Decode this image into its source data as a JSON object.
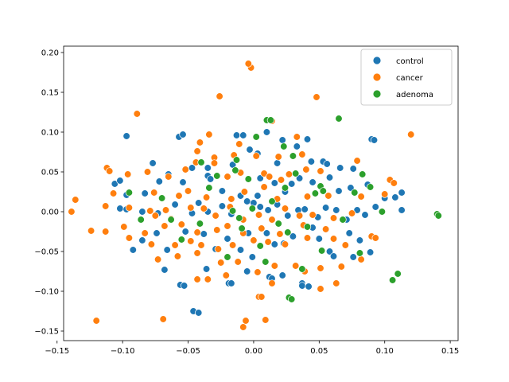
{
  "chart_data": {
    "type": "scatter",
    "title": "",
    "xlabel": "",
    "ylabel": "",
    "xlim": [
      -0.145,
      0.156
    ],
    "ylim": [
      -0.162,
      0.208
    ],
    "xticks": [
      -0.15,
      -0.1,
      -0.05,
      0.0,
      0.05,
      0.1,
      0.15
    ],
    "xtick_labels": [
      "−0.15",
      "−0.10",
      "−0.05",
      "0.00",
      "0.05",
      "0.10",
      "0.15"
    ],
    "yticks": [
      -0.15,
      -0.1,
      -0.05,
      0.0,
      0.05,
      0.1,
      0.15,
      0.2
    ],
    "ytick_labels": [
      "−0.15",
      "−0.10",
      "−0.05",
      "0.00",
      "0.05",
      "0.10",
      "0.15",
      "0.20"
    ],
    "grid": false,
    "legend": {
      "placement": "top-right"
    },
    "series": [
      {
        "name": "control",
        "color": "#1f77b4",
        "points": [
          [
            -0.097,
            0.095
          ],
          [
            -0.057,
            0.094
          ],
          [
            -0.054,
            0.097
          ],
          [
            -0.013,
            0.096
          ],
          [
            -0.008,
            0.096
          ],
          [
            0.01,
            0.1
          ],
          [
            0.022,
            0.09
          ],
          [
            -0.077,
            0.061
          ],
          [
            -0.065,
            0.047
          ],
          [
            -0.047,
            0.055
          ],
          [
            -0.035,
            0.055
          ],
          [
            -0.016,
            0.059
          ],
          [
            -0.003,
            0.078
          ],
          [
            0.003,
            0.073
          ],
          [
            0.018,
            0.061
          ],
          [
            0.033,
            0.082
          ],
          [
            0.041,
            0.091
          ],
          [
            0.044,
            0.063
          ],
          [
            0.053,
            0.063
          ],
          [
            0.056,
            0.06
          ],
          [
            0.066,
            0.055
          ],
          [
            0.076,
            0.054
          ],
          [
            0.09,
            0.091
          ],
          [
            0.092,
            0.09
          ],
          [
            -0.106,
            0.035
          ],
          [
            -0.102,
            0.039
          ],
          [
            -0.097,
            0.021
          ],
          [
            -0.083,
            0.023
          ],
          [
            -0.072,
            0.038
          ],
          [
            -0.054,
            0.037
          ],
          [
            -0.035,
            0.045
          ],
          [
            -0.033,
            0.041
          ],
          [
            -0.024,
            0.026
          ],
          [
            -0.01,
            0.02
          ],
          [
            0.003,
            0.02
          ],
          [
            0.005,
            0.042
          ],
          [
            0.016,
            0.036
          ],
          [
            0.024,
            0.025
          ],
          [
            0.029,
            0.035
          ],
          [
            0.035,
            0.042
          ],
          [
            0.045,
            0.037
          ],
          [
            0.058,
            0.043
          ],
          [
            0.065,
            0.026
          ],
          [
            0.074,
            0.03
          ],
          [
            0.087,
            0.034
          ],
          [
            0.1,
            0.017
          ],
          [
            0.108,
            0.018
          ],
          [
            0.113,
            0.024
          ],
          [
            -0.102,
            0.004
          ],
          [
            -0.097,
            0.003
          ],
          [
            -0.085,
            0.0
          ],
          [
            -0.073,
            -0.002
          ],
          [
            -0.06,
            0.009
          ],
          [
            -0.047,
            -0.002
          ],
          [
            -0.042,
            0.011
          ],
          [
            -0.035,
            0.0
          ],
          [
            -0.024,
            0.007
          ],
          [
            -0.017,
            -0.003
          ],
          [
            -0.005,
            0.013
          ],
          [
            0.0,
            0.011
          ],
          [
            0.005,
            0.006
          ],
          [
            0.011,
            0.002
          ],
          [
            0.018,
            0.009
          ],
          [
            0.026,
            -0.005
          ],
          [
            0.034,
            0.002
          ],
          [
            0.039,
            0.003
          ],
          [
            0.049,
            -0.007
          ],
          [
            0.055,
            0.005
          ],
          [
            0.063,
            0.002
          ],
          [
            0.071,
            -0.01
          ],
          [
            0.079,
            0.002
          ],
          [
            0.085,
            -0.004
          ],
          [
            0.093,
            0.006
          ],
          [
            0.113,
            0.002
          ],
          [
            -0.092,
            -0.048
          ],
          [
            -0.085,
            -0.036
          ],
          [
            -0.074,
            -0.027
          ],
          [
            -0.066,
            -0.048
          ],
          [
            -0.052,
            -0.025
          ],
          [
            -0.038,
            -0.028
          ],
          [
            -0.029,
            -0.047
          ],
          [
            -0.02,
            -0.034
          ],
          [
            -0.01,
            -0.048
          ],
          [
            -0.004,
            -0.027
          ],
          [
            0.01,
            -0.027
          ],
          [
            0.016,
            -0.041
          ],
          [
            0.023,
            -0.04
          ],
          [
            0.03,
            -0.031
          ],
          [
            0.045,
            -0.02
          ],
          [
            0.05,
            -0.034
          ],
          [
            0.058,
            -0.05
          ],
          [
            0.073,
            -0.027
          ],
          [
            0.081,
            -0.036
          ],
          [
            0.089,
            -0.051
          ],
          [
            -0.068,
            -0.073
          ],
          [
            -0.056,
            -0.092
          ],
          [
            -0.053,
            -0.093
          ],
          [
            -0.036,
            -0.072
          ],
          [
            -0.019,
            -0.09
          ],
          [
            -0.017,
            -0.09
          ],
          [
            -0.005,
            -0.075
          ],
          [
            0.012,
            -0.082
          ],
          [
            0.014,
            -0.084
          ],
          [
            0.022,
            -0.08
          ],
          [
            0.037,
            -0.09
          ],
          [
            0.037,
            -0.093
          ],
          [
            0.042,
            -0.094
          ],
          [
            -0.046,
            -0.125
          ],
          [
            -0.042,
            -0.127
          ],
          [
            -0.001,
            -0.057
          ],
          [
            0.061,
            -0.056
          ],
          [
            0.076,
            -0.057
          ]
        ]
      },
      {
        "name": "cancer",
        "color": "#ff7f0e",
        "points": [
          [
            -0.002,
            0.181
          ],
          [
            -0.004,
            0.186
          ],
          [
            0.048,
            0.144
          ],
          [
            -0.026,
            0.145
          ],
          [
            -0.089,
            0.123
          ],
          [
            0.12,
            0.097
          ],
          [
            0.014,
            0.114
          ],
          [
            -0.041,
            0.087
          ],
          [
            -0.034,
            0.097
          ],
          [
            -0.015,
            0.071
          ],
          [
            0.002,
            0.07
          ],
          [
            0.019,
            0.069
          ],
          [
            0.037,
            0.072
          ],
          [
            -0.043,
            0.076
          ],
          [
            -0.03,
            0.068
          ],
          [
            -0.112,
            0.055
          ],
          [
            -0.11,
            0.051
          ],
          [
            -0.096,
            0.047
          ],
          [
            -0.081,
            0.05
          ],
          [
            -0.065,
            0.044
          ],
          [
            -0.052,
            0.053
          ],
          [
            -0.044,
            0.062
          ],
          [
            -0.03,
            0.061
          ],
          [
            -0.02,
            0.044
          ],
          [
            -0.01,
            0.049
          ],
          [
            0.008,
            0.048
          ],
          [
            0.012,
            0.044
          ],
          [
            0.021,
            0.04
          ],
          [
            0.027,
            0.047
          ],
          [
            0.04,
            0.053
          ],
          [
            0.051,
            0.051
          ],
          [
            0.079,
            0.064
          ],
          [
            0.104,
            0.04
          ],
          [
            0.107,
            0.036
          ],
          [
            -0.136,
            0.015
          ],
          [
            -0.107,
            0.023
          ],
          [
            -0.076,
            0.024
          ],
          [
            -0.057,
            0.02
          ],
          [
            -0.05,
            0.026
          ],
          [
            -0.036,
            0.018
          ],
          [
            -0.017,
            0.016
          ],
          [
            -0.007,
            0.025
          ],
          [
            0.008,
            0.031
          ],
          [
            0.018,
            0.016
          ],
          [
            0.041,
            0.019
          ],
          [
            0.057,
            0.02
          ],
          [
            0.082,
            0.019
          ],
          [
            0.1,
            0.022
          ],
          [
            -0.139,
            0.0
          ],
          [
            -0.113,
            0.007
          ],
          [
            -0.095,
            0.005
          ],
          [
            -0.079,
            0.001
          ],
          [
            -0.075,
            -0.005
          ],
          [
            -0.063,
            -0.009
          ],
          [
            -0.048,
            0.005
          ],
          [
            -0.038,
            0.004
          ],
          [
            -0.029,
            -0.005
          ],
          [
            -0.018,
            0.006
          ],
          [
            -0.008,
            -0.01
          ],
          [
            0.004,
            -0.004
          ],
          [
            0.014,
            -0.01
          ],
          [
            0.024,
            0.004
          ],
          [
            0.035,
            -0.005
          ],
          [
            0.045,
            -0.004
          ],
          [
            0.061,
            -0.008
          ],
          [
            0.075,
            -0.002
          ],
          [
            -0.124,
            -0.024
          ],
          [
            -0.113,
            -0.025
          ],
          [
            -0.099,
            -0.019
          ],
          [
            -0.083,
            -0.027
          ],
          [
            -0.068,
            -0.018
          ],
          [
            -0.055,
            -0.016
          ],
          [
            -0.043,
            -0.026
          ],
          [
            -0.028,
            -0.023
          ],
          [
            -0.02,
            -0.018
          ],
          [
            -0.008,
            -0.027
          ],
          [
            0.006,
            -0.021
          ],
          [
            0.02,
            -0.028
          ],
          [
            0.038,
            -0.017
          ],
          [
            0.055,
            -0.022
          ],
          [
            0.09,
            -0.031
          ],
          [
            -0.095,
            -0.033
          ],
          [
            -0.078,
            -0.041
          ],
          [
            -0.06,
            -0.042
          ],
          [
            -0.048,
            -0.037
          ],
          [
            -0.04,
            -0.042
          ],
          [
            -0.027,
            -0.047
          ],
          [
            -0.016,
            -0.042
          ],
          [
            0.0,
            -0.036
          ],
          [
            0.011,
            -0.038
          ],
          [
            0.024,
            -0.041
          ],
          [
            0.041,
            -0.033
          ],
          [
            0.061,
            -0.034
          ],
          [
            0.093,
            -0.033
          ],
          [
            -0.073,
            -0.06
          ],
          [
            -0.058,
            -0.056
          ],
          [
            -0.043,
            -0.052
          ],
          [
            -0.025,
            -0.064
          ],
          [
            -0.012,
            -0.063
          ],
          [
            0.003,
            -0.076
          ],
          [
            0.016,
            -0.068
          ],
          [
            0.032,
            -0.068
          ],
          [
            0.051,
            -0.071
          ],
          [
            0.067,
            -0.069
          ],
          [
            -0.043,
            -0.085
          ],
          [
            -0.035,
            -0.085
          ],
          [
            -0.021,
            -0.08
          ],
          [
            0.014,
            -0.09
          ],
          [
            0.039,
            -0.075
          ],
          [
            0.063,
            -0.09
          ],
          [
            0.051,
            -0.097
          ],
          [
            0.004,
            -0.107
          ],
          [
            0.006,
            -0.107
          ],
          [
            -0.12,
            -0.137
          ],
          [
            -0.069,
            -0.135
          ],
          [
            -0.008,
            -0.145
          ],
          [
            -0.006,
            -0.137
          ],
          [
            0.009,
            -0.136
          ],
          [
            0.082,
            -0.06
          ],
          [
            -0.011,
            0.085
          ],
          [
            0.033,
            0.094
          ],
          [
            -0.067,
            0.002
          ],
          [
            0.07,
            -0.042
          ]
        ]
      },
      {
        "name": "adenoma",
        "color": "#2ca02c",
        "points": [
          [
            0.01,
            0.115
          ],
          [
            0.013,
            0.115
          ],
          [
            0.065,
            0.117
          ],
          [
            0.002,
            0.094
          ],
          [
            0.023,
            0.082
          ],
          [
            0.03,
            0.07
          ],
          [
            -0.013,
            0.065
          ],
          [
            -0.04,
            0.062
          ],
          [
            -0.014,
            0.052
          ],
          [
            -0.028,
            0.045
          ],
          [
            -0.004,
            0.041
          ],
          [
            0.024,
            0.03
          ],
          [
            0.032,
            0.048
          ],
          [
            0.051,
            0.032
          ],
          [
            0.083,
            0.047
          ],
          [
            0.089,
            0.031
          ],
          [
            0.077,
            0.024
          ],
          [
            -0.095,
            0.024
          ],
          [
            -0.07,
            0.017
          ],
          [
            -0.034,
            0.03
          ],
          [
            -0.016,
            0.001
          ],
          [
            0.014,
            0.013
          ],
          [
            0.047,
            0.023
          ],
          [
            -0.086,
            -0.01
          ],
          [
            -0.063,
            -0.01
          ],
          [
            -0.041,
            -0.015
          ],
          [
            -0.011,
            -0.008
          ],
          [
            0.019,
            -0.015
          ],
          [
            0.041,
            -0.019
          ],
          [
            0.068,
            -0.01
          ],
          [
            0.098,
            0.0
          ],
          [
            -0.055,
            -0.035
          ],
          [
            -0.009,
            -0.021
          ],
          [
            0.026,
            -0.026
          ],
          [
            0.005,
            -0.043
          ],
          [
            0.052,
            -0.049
          ],
          [
            -0.02,
            -0.057
          ],
          [
            0.009,
            -0.063
          ],
          [
            0.037,
            -0.072
          ],
          [
            0.081,
            -0.052
          ],
          [
            0.11,
            -0.078
          ],
          [
            0.106,
            -0.086
          ],
          [
            0.027,
            -0.108
          ],
          [
            0.029,
            -0.11
          ],
          [
            0.14,
            -0.003
          ],
          [
            0.141,
            -0.005
          ],
          [
            0.053,
            0.026
          ],
          [
            -0.001,
            0.004
          ]
        ]
      }
    ]
  }
}
